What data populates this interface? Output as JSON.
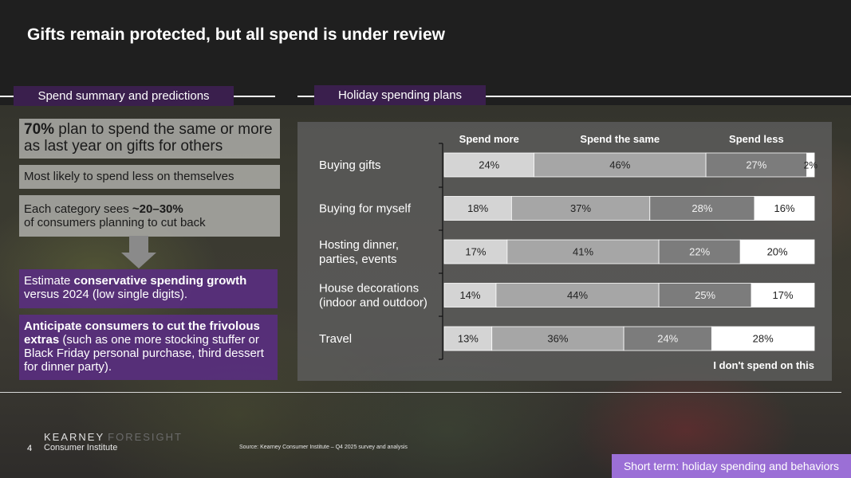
{
  "slide": {
    "title": "Gifts remain protected, but all spend is under review",
    "page_number": "4",
    "logo_primary": "KEARNEY",
    "logo_secondary": "FORESIGHT",
    "logo_subtitle": "Consumer Institute",
    "source": "Source: Kearney Consumer Institute – Q4 2025 survey and analysis",
    "footer_tag": "Short term: holiday spending and behaviors"
  },
  "left_panel": {
    "heading": "Spend summary and predictions",
    "card1_bold": "70%",
    "card1_text": " plan to spend the same or more as last year on gifts for others",
    "card2_text": "Most likely to spend less on themselves",
    "card3_text_a": "Each category sees ",
    "card3_bold": "~20–30%",
    "card3_text_b": "of consumers planning to cut back",
    "card4_text_a": "Estimate ",
    "card4_bold": "conservative spending growth",
    "card4_text_b": " versus 2024 (low single digits).",
    "card5_bold": "Anticipate consumers to cut the frivolous extras",
    "card5_text": " (such as one more stocking stuffer or Black Friday personal purchase, third dessert for dinner party)."
  },
  "right_panel": {
    "heading": "Holiday spending plans"
  },
  "chart_data": {
    "type": "bar",
    "orientation": "horizontal",
    "stacked": true,
    "categories": [
      "Buying gifts",
      "Buying for myself",
      "Hosting dinner, parties, events",
      "House decorations (indoor and outdoor)",
      "Travel"
    ],
    "category_lines": [
      [
        "Buying gifts"
      ],
      [
        "Buying for myself"
      ],
      [
        "Hosting dinner,",
        "parties, events"
      ],
      [
        "House decorations",
        "(indoor and outdoor)"
      ],
      [
        "Travel"
      ]
    ],
    "series": [
      {
        "name": "Spend more",
        "values": [
          24,
          18,
          17,
          14,
          13
        ],
        "color": "#d4d4d4"
      },
      {
        "name": "Spend the same",
        "values": [
          46,
          37,
          41,
          44,
          36
        ],
        "color": "#a6a6a6"
      },
      {
        "name": "Spend less",
        "values": [
          27,
          28,
          22,
          25,
          24
        ],
        "color": "#7c7c7c"
      },
      {
        "name": "I don't spend on this",
        "values": [
          2,
          16,
          20,
          17,
          28
        ],
        "color": "#ffffff"
      }
    ],
    "value_labels": [
      [
        "24%",
        "46%",
        "27%",
        "2%"
      ],
      [
        "18%",
        "37%",
        "28%",
        "16%"
      ],
      [
        "17%",
        "41%",
        "22%",
        "20%"
      ],
      [
        "14%",
        "44%",
        "25%",
        "17%"
      ],
      [
        "13%",
        "36%",
        "24%",
        "28%"
      ]
    ],
    "legend_placement": "top",
    "unit": "%"
  }
}
